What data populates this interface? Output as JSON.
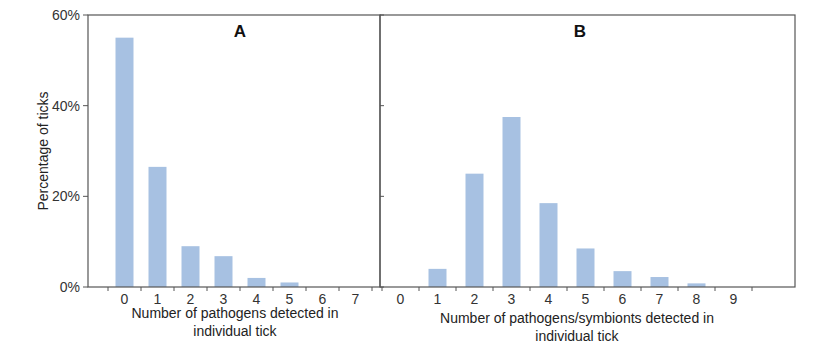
{
  "chart_data": [
    {
      "type": "bar",
      "title": "A",
      "x_label": "Number of pathogens detected in individual tick",
      "y_label": "Percentage of ticks",
      "categories": [
        0,
        1,
        2,
        3,
        4,
        5,
        6,
        7
      ],
      "values": [
        55,
        26.5,
        9,
        6.8,
        2,
        1,
        0,
        0
      ],
      "color": "#a7c1e2",
      "ylim": [
        0,
        60
      ],
      "yticks": [
        {
          "value": 0,
          "label": "0%"
        },
        {
          "value": 20,
          "label": "20%"
        },
        {
          "value": 40,
          "label": "40%"
        },
        {
          "value": 60,
          "label": "60%"
        }
      ],
      "grid": false
    },
    {
      "type": "bar",
      "title": "B",
      "x_label": "Number of pathogens/symbionts detected in individual tick",
      "categories": [
        0,
        1,
        2,
        3,
        4,
        5,
        6,
        7,
        8,
        9
      ],
      "values": [
        0,
        4,
        25,
        37.5,
        18.5,
        8.5,
        3.5,
        2.2,
        0.8,
        0
      ],
      "color": "#a7c1e2",
      "ylim": [
        0,
        60
      ],
      "yticks": [
        {
          "value": 0,
          "label": "0%"
        },
        {
          "value": 20,
          "label": "20%"
        },
        {
          "value": 40,
          "label": "40%"
        },
        {
          "value": 60,
          "label": "60%"
        }
      ],
      "grid": false,
      "tick_labels": "x"
    }
  ]
}
